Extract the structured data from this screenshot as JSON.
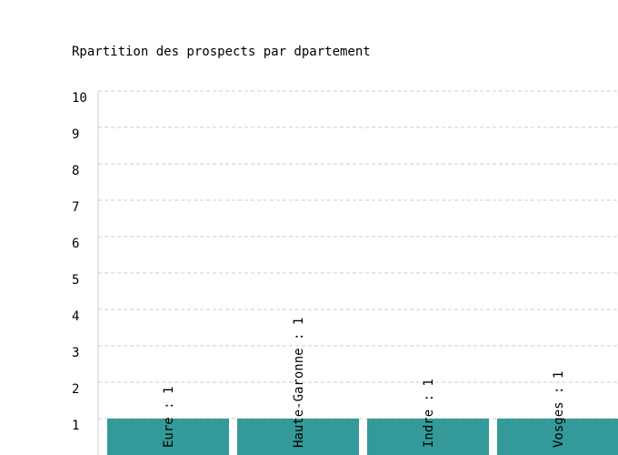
{
  "chart_data": {
    "type": "bar",
    "title": "Rpartition des prospects par dpartement",
    "categories": [
      "Eure",
      "Haute-Garonne",
      "Indre",
      "Vosges"
    ],
    "values": [
      1,
      1,
      1,
      1
    ],
    "data_labels": [
      "Eure : 1",
      "Haute-Garonne : 1",
      "Indre : 1",
      "Vosges : 1"
    ],
    "yticks": [
      "10",
      "9",
      "8",
      "7",
      "6",
      "5",
      "4",
      "3",
      "2",
      "1"
    ],
    "ylim": [
      0,
      10
    ],
    "xlabel": "",
    "ylabel": "",
    "grid": true,
    "legend": "none",
    "colors": {
      "bar": "#339999",
      "grid": "#cccccc",
      "axis": "#cccccc",
      "text": "#000000"
    }
  }
}
